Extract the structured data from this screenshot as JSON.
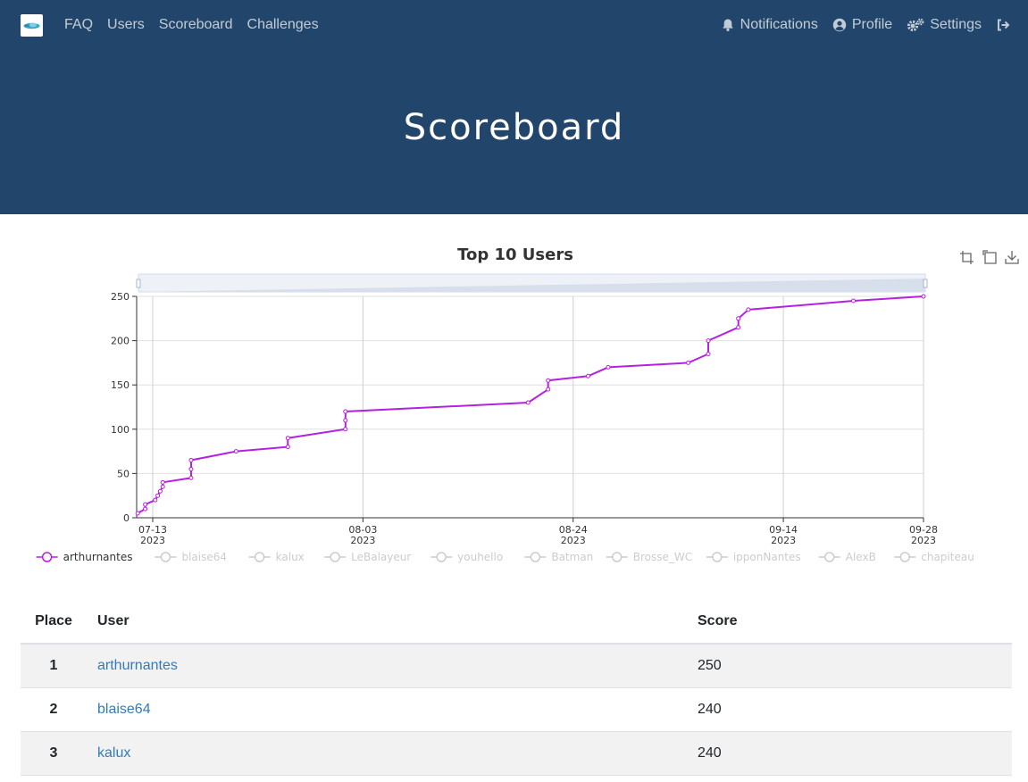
{
  "nav": {
    "left_links": [
      "FAQ",
      "Users",
      "Scoreboard",
      "Challenges"
    ],
    "notifications": "Notifications",
    "profile": "Profile",
    "settings": "Settings"
  },
  "page_title": "Scoreboard",
  "colors": {
    "navbar": "#22466b",
    "series": "#b620e0",
    "link": "#337ab7"
  },
  "chart_data": {
    "type": "line",
    "title": "Top 10 Users",
    "ylim": [
      0,
      250
    ],
    "yticks": [
      0,
      50,
      100,
      150,
      200,
      250
    ],
    "xticks": [
      {
        "date": "2023-07-13",
        "label": "07-13",
        "sub": "2023"
      },
      {
        "date": "2023-08-03",
        "label": "08-03",
        "sub": "2023"
      },
      {
        "date": "2023-08-24",
        "label": "08-24",
        "sub": "2023"
      },
      {
        "date": "2023-09-14",
        "label": "09-14",
        "sub": "2023"
      },
      {
        "date": "2023-09-28",
        "label": "09-28",
        "sub": "2023"
      }
    ],
    "grid": true,
    "legend_position": "bottom",
    "toolbox": [
      "zoom-icon",
      "zoom-reset-icon",
      "download-icon"
    ],
    "series": [
      {
        "name": "arthurnantes",
        "active": true,
        "points": [
          [
            "2023-07-11T12:00",
            5
          ],
          [
            "2023-07-12T06:00",
            10
          ],
          [
            "2023-07-12T06:00",
            15
          ],
          [
            "2023-07-13T06:00",
            20
          ],
          [
            "2023-07-13T12:00",
            25
          ],
          [
            "2023-07-13T18:00",
            30
          ],
          [
            "2023-07-14T00:00",
            35
          ],
          [
            "2023-07-14T00:00",
            40
          ],
          [
            "2023-07-16T20:00",
            45
          ],
          [
            "2023-07-16T20:00",
            55
          ],
          [
            "2023-07-16T20:00",
            65
          ],
          [
            "2023-07-21T08:00",
            75
          ],
          [
            "2023-07-26T12:00",
            80
          ],
          [
            "2023-07-26T12:00",
            90
          ],
          [
            "2023-08-01T06:00",
            100
          ],
          [
            "2023-08-01T06:00",
            110
          ],
          [
            "2023-08-01T06:00",
            120
          ],
          [
            "2023-08-19T12:00",
            130
          ],
          [
            "2023-08-21T12:00",
            145
          ],
          [
            "2023-08-21T12:00",
            155
          ],
          [
            "2023-08-25T12:00",
            160
          ],
          [
            "2023-08-27T12:00",
            170
          ],
          [
            "2023-09-04T12:00",
            175
          ],
          [
            "2023-09-06T12:00",
            185
          ],
          [
            "2023-09-06T12:00",
            200
          ],
          [
            "2023-09-09T12:00",
            215
          ],
          [
            "2023-09-09T12:00",
            225
          ],
          [
            "2023-09-10T12:00",
            235
          ],
          [
            "2023-09-21T00:00",
            245
          ],
          [
            "2023-09-28T00:00",
            250
          ]
        ]
      },
      {
        "name": "blaise64",
        "active": false
      },
      {
        "name": "kalux",
        "active": false
      },
      {
        "name": "LeBalayeur",
        "active": false
      },
      {
        "name": "youhello",
        "active": false
      },
      {
        "name": "Batman",
        "active": false
      },
      {
        "name": "Brosse_WC",
        "active": false
      },
      {
        "name": "ipponNantes",
        "active": false
      },
      {
        "name": "AlexB",
        "active": false
      },
      {
        "name": "chapiteau",
        "active": false
      }
    ]
  },
  "table": {
    "headers": {
      "place": "Place",
      "user": "User",
      "score": "Score"
    },
    "rows": [
      {
        "place": "1",
        "user": "arthurnantes",
        "score": "250"
      },
      {
        "place": "2",
        "user": "blaise64",
        "score": "240"
      },
      {
        "place": "3",
        "user": "kalux",
        "score": "240"
      }
    ]
  }
}
